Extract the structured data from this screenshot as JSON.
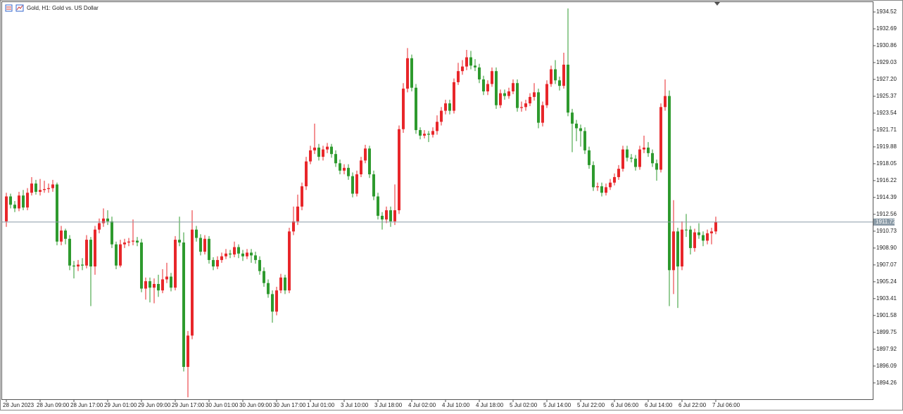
{
  "chart_data": {
    "type": "candlestick",
    "title": "Gold, H1:  Gold vs. US Dollar",
    "up_color": "#e8262a",
    "down_color": "#2e9a2e",
    "current_price": 1911.72,
    "ylim": [
      1892.49,
      1935.59
    ],
    "yticks": [
      1934.52,
      1932.69,
      1930.86,
      1929.03,
      {
        "value": 1927.2,
        "label": "1927.20"
      },
      1925.37,
      1923.54,
      1921.71,
      1919.88,
      1918.05,
      1916.22,
      1914.39,
      1912.56,
      1910.73,
      {
        "value": 1908.9,
        "label": "1908.90"
      },
      1907.07,
      1905.24,
      1903.41,
      1901.58,
      1899.75,
      1897.92,
      1896.09,
      1894.26
    ],
    "categories": [
      "28 Jun 2023",
      null,
      null,
      null,
      null,
      null,
      null,
      null,
      "28 Jun 09:00",
      null,
      null,
      null,
      null,
      null,
      null,
      null,
      "28 Jun 17:00",
      null,
      null,
      null,
      null,
      null,
      null,
      null,
      "29 Jun 01:00",
      null,
      null,
      null,
      null,
      null,
      null,
      null,
      "29 Jun 09:00",
      null,
      null,
      null,
      null,
      null,
      null,
      null,
      "29 Jun 17:00",
      null,
      null,
      null,
      null,
      null,
      null,
      null,
      "30 Jun 01:00",
      null,
      null,
      null,
      null,
      null,
      null,
      null,
      "30 Jun 09:00",
      null,
      null,
      null,
      null,
      null,
      null,
      null,
      "30 Jun 17:00",
      null,
      null,
      null,
      null,
      null,
      null,
      null,
      "1 Jul 01:00",
      null,
      null,
      null,
      null,
      null,
      null,
      null,
      "3 Jul 10:00",
      null,
      null,
      null,
      null,
      null,
      null,
      null,
      "3 Jul 18:00",
      null,
      null,
      null,
      null,
      null,
      null,
      null,
      "4 Jul 02:00",
      null,
      null,
      null,
      null,
      null,
      null,
      null,
      "4 Jul 10:00",
      null,
      null,
      null,
      null,
      null,
      null,
      null,
      "4 Jul 18:00",
      null,
      null,
      null,
      null,
      null,
      null,
      null,
      "5 Jul 02:00",
      null,
      null,
      null,
      null,
      null,
      null,
      null,
      "5 Jul 14:00",
      null,
      null,
      null,
      null,
      null,
      null,
      null,
      "5 Jul 22:00",
      null,
      null,
      null,
      null,
      null,
      null,
      null,
      "6 Jul 06:00",
      null,
      null,
      null,
      null,
      null,
      null,
      null,
      "6 Jul 14:00",
      null,
      null,
      null,
      null,
      null,
      null,
      null,
      "6 Jul 22:00",
      null,
      null,
      null,
      null,
      null,
      null,
      null,
      "7 Jul 06:00"
    ],
    "open": [
      1911.8,
      1914.5,
      1913.6,
      1913.2,
      1914.6,
      1913.3,
      1914.9,
      1915.9,
      1915.0,
      1915.2,
      1915.3,
      1915.4,
      1915.8,
      1909.6,
      1910.8,
      1909.9,
      1907.0,
      1906.9,
      1907.1,
      1907.0,
      1909.8,
      1906.9,
      1910.9,
      1911.6,
      1912.1,
      1911.8,
      1909.3,
      1907.0,
      1909.3,
      1909.5,
      1909.6,
      1909.7,
      1909.5,
      1904.5,
      1905.3,
      1904.6,
      1905.0,
      1904.3,
      1905.5,
      1905.8,
      1904.6,
      1909.8,
      1909.5,
      1896.0,
      1899.4,
      1910.9,
      1910.0,
      1908.5,
      1909.9,
      1907.6,
      1906.9,
      1907.6,
      1908.0,
      1908.3,
      1908.2,
      1909.0,
      1908.3,
      1908.0,
      1908.4,
      1908.1,
      1907.6,
      1906.4,
      1905.1,
      1903.9,
      1902.0,
      1904.3,
      1905.7,
      1904.3,
      1910.7,
      1911.8,
      1913.4,
      1915.6,
      1918.3,
      1919.5,
      1919.8,
      1918.8,
      1919.6,
      1919.9,
      1919.1,
      1918.1,
      1917.3,
      1917.6,
      1916.7,
      1914.8,
      1916.9,
      1918.4,
      1919.7,
      1916.9,
      1914.5,
      1912.4,
      1912.0,
      1913.0,
      1911.8,
      1913.0,
      1921.8,
      1926.2,
      1929.5,
      1926.3,
      1921.7,
      1921.1,
      1921.3,
      1921.2,
      1921.6,
      1922.6,
      1923.8,
      1924.6,
      1923.8,
      1926.9,
      1928.1,
      1928.6,
      1929.6,
      1928.7,
      1928.5,
      1927.2,
      1925.9,
      1926.7,
      1928.1,
      1924.4,
      1925.7,
      1925.4,
      1925.9,
      1926.8,
      1924.1,
      1924.2,
      1924.6,
      1925.3,
      1925.8,
      1922.5,
      1924.4,
      1926.7,
      1928.3,
      1927.1,
      1926.5,
      1928.8,
      1923.6,
      1922.4,
      1921.9,
      1921.6,
      1919.5,
      1917.9,
      1915.5,
      1915.6,
      1914.9,
      1915.5,
      1916.0,
      1916.6,
      1917.5,
      1919.6,
      1918.7,
      1918.6,
      1917.7,
      1919.6,
      1919.8,
      1919.2,
      1918.1,
      1917.4,
      1924.2,
      1925.4,
      1906.5,
      1910.7,
      1906.9,
      1910.9,
      1910.9,
      1908.9,
      1910.6,
      1910.3,
      1909.7,
      1910.5,
      1910.7
    ],
    "high": [
      1914.9,
      1914.8,
      1914.0,
      1915.0,
      1915.2,
      1915.4,
      1916.6,
      1916.3,
      1916.4,
      1916.2,
      1915.9,
      1916.3,
      1916.0,
      1911.3,
      1911.0,
      1910.3,
      1907.5,
      1907.6,
      1907.8,
      1910.3,
      1910.1,
      1911.3,
      1912.1,
      1913.2,
      1913.0,
      1912.3,
      1909.6,
      1909.8,
      1909.9,
      1910.0,
      1912.0,
      1910.1,
      1909.9,
      1905.7,
      1905.7,
      1905.6,
      1906.0,
      1906.6,
      1907.3,
      1906.2,
      1910.2,
      1912.3,
      1910.6,
      1899.9,
      1913.0,
      1911.3,
      1910.4,
      1910.3,
      1910.2,
      1907.9,
      1908.0,
      1908.4,
      1908.8,
      1908.7,
      1909.6,
      1909.3,
      1908.7,
      1908.8,
      1908.8,
      1908.5,
      1908.0,
      1906.8,
      1905.5,
      1904.3,
      1904.7,
      1906.1,
      1906.0,
      1911.1,
      1913.4,
      1914.7,
      1916.0,
      1918.8,
      1920.0,
      1922.4,
      1920.2,
      1920.0,
      1920.3,
      1920.2,
      1919.5,
      1918.5,
      1918.0,
      1918.0,
      1917.1,
      1917.3,
      1918.8,
      1920.1,
      1920.0,
      1917.3,
      1914.9,
      1912.8,
      1913.4,
      1913.4,
      1915.8,
      1922.2,
      1926.8,
      1930.6,
      1929.9,
      1926.7,
      1922.0,
      1921.7,
      1921.6,
      1922.0,
      1923.3,
      1924.2,
      1925.0,
      1925.0,
      1927.3,
      1929.0,
      1929.3,
      1930.4,
      1930.3,
      1929.4,
      1928.9,
      1927.6,
      1927.1,
      1928.5,
      1928.5,
      1926.1,
      1926.1,
      1926.3,
      1927.2,
      1927.2,
      1924.8,
      1925.0,
      1925.7,
      1926.8,
      1926.2,
      1924.8,
      1927.1,
      1928.7,
      1929.3,
      1927.5,
      1930.1,
      1934.9,
      1924.0,
      1922.8,
      1922.3,
      1922.0,
      1919.9,
      1918.3,
      1916.0,
      1916.0,
      1915.9,
      1916.4,
      1917.0,
      1917.9,
      1920.0,
      1920.0,
      1919.1,
      1919.0,
      1920.0,
      1921.1,
      1920.4,
      1919.6,
      1918.5,
      1924.6,
      1927.2,
      1926.0,
      1914.1,
      1911.1,
      1911.8,
      1912.6,
      1911.3,
      1911.0,
      1911.6,
      1910.7,
      1910.9,
      1911.1,
      1912.3
    ],
    "low": [
      1911.2,
      1913.2,
      1912.8,
      1912.9,
      1913.0,
      1913.0,
      1914.6,
      1914.7,
      1914.6,
      1914.9,
      1914.9,
      1915.0,
      1909.2,
      1909.2,
      1909.3,
      1906.5,
      1905.6,
      1906.4,
      1906.5,
      1906.7,
      1902.6,
      1906.0,
      1910.5,
      1911.2,
      1911.4,
      1908.9,
      1906.6,
      1906.8,
      1908.9,
      1909.1,
      1909.2,
      1909.1,
      1904.1,
      1903.3,
      1903.0,
      1902.9,
      1903.6,
      1904.0,
      1905.1,
      1904.2,
      1904.3,
      1909.1,
      1895.5,
      1892.7,
      1899.0,
      1909.6,
      1908.1,
      1908.2,
      1907.2,
      1906.5,
      1906.6,
      1907.3,
      1907.7,
      1907.8,
      1907.9,
      1907.8,
      1907.5,
      1907.7,
      1907.3,
      1907.2,
      1906.0,
      1904.7,
      1903.5,
      1900.8,
      1901.6,
      1904.0,
      1903.9,
      1904.0,
      1910.3,
      1911.4,
      1913.0,
      1915.2,
      1918.0,
      1919.1,
      1918.4,
      1918.4,
      1919.2,
      1918.7,
      1917.7,
      1916.9,
      1916.9,
      1916.3,
      1914.4,
      1914.5,
      1916.6,
      1918.1,
      1916.5,
      1914.1,
      1912.0,
      1910.9,
      1911.6,
      1911.2,
      1911.4,
      1912.6,
      1921.4,
      1925.8,
      1925.9,
      1921.3,
      1920.7,
      1920.8,
      1920.4,
      1920.9,
      1921.2,
      1922.2,
      1923.4,
      1923.4,
      1923.5,
      1926.6,
      1927.7,
      1928.2,
      1928.3,
      1928.1,
      1926.8,
      1925.5,
      1925.5,
      1926.4,
      1924.0,
      1924.1,
      1925.0,
      1925.1,
      1925.6,
      1923.7,
      1923.7,
      1923.8,
      1924.3,
      1924.9,
      1921.9,
      1922.1,
      1924.1,
      1926.4,
      1926.7,
      1926.0,
      1926.2,
      1923.2,
      1919.3,
      1920.5,
      1919.9,
      1919.1,
      1917.5,
      1915.1,
      1915.1,
      1914.5,
      1914.6,
      1915.2,
      1915.7,
      1916.3,
      1917.2,
      1918.3,
      1918.2,
      1917.3,
      1917.4,
      1919.2,
      1918.8,
      1917.7,
      1916.2,
      1917.1,
      1923.8,
      1902.6,
      1903.9,
      1902.4,
      1906.5,
      1910.1,
      1908.2,
      1908.5,
      1909.9,
      1909.1,
      1909.3,
      1909.3,
      1910.4
    ],
    "close": [
      1914.5,
      1913.6,
      1913.2,
      1914.6,
      1913.3,
      1914.9,
      1915.9,
      1915.0,
      1915.2,
      1915.3,
      1915.4,
      1915.8,
      1909.6,
      1910.8,
      1909.9,
      1907.0,
      1906.9,
      1907.1,
      1907.0,
      1909.8,
      1906.9,
      1910.9,
      1911.6,
      1912.1,
      1911.8,
      1909.3,
      1907.0,
      1909.3,
      1909.5,
      1909.6,
      1909.7,
      1909.5,
      1904.5,
      1905.3,
      1904.6,
      1905.0,
      1904.3,
      1905.5,
      1905.8,
      1904.6,
      1909.8,
      1909.5,
      1896.0,
      1899.4,
      1910.9,
      1910.0,
      1908.5,
      1909.9,
      1907.6,
      1906.9,
      1907.6,
      1908.0,
      1908.3,
      1908.2,
      1909.0,
      1908.3,
      1908.0,
      1908.4,
      1908.1,
      1907.6,
      1906.4,
      1905.1,
      1903.9,
      1902.0,
      1904.3,
      1905.7,
      1904.3,
      1910.7,
      1911.8,
      1913.4,
      1915.6,
      1918.3,
      1919.5,
      1919.8,
      1918.8,
      1919.6,
      1919.9,
      1919.1,
      1918.1,
      1917.3,
      1917.6,
      1916.7,
      1914.8,
      1916.9,
      1918.4,
      1919.7,
      1916.9,
      1914.5,
      1912.4,
      1912.0,
      1913.0,
      1911.8,
      1913.0,
      1921.8,
      1926.2,
      1929.5,
      1926.3,
      1921.7,
      1921.1,
      1921.3,
      1921.2,
      1921.6,
      1922.6,
      1923.8,
      1924.6,
      1923.8,
      1926.9,
      1928.1,
      1928.6,
      1929.6,
      1928.7,
      1928.5,
      1927.2,
      1925.9,
      1926.7,
      1928.1,
      1924.4,
      1925.7,
      1925.4,
      1925.9,
      1926.8,
      1924.1,
      1924.2,
      1924.6,
      1925.3,
      1925.8,
      1922.5,
      1924.4,
      1926.7,
      1928.3,
      1927.1,
      1926.5,
      1928.8,
      1923.6,
      1922.4,
      1921.9,
      1921.6,
      1919.5,
      1917.9,
      1915.5,
      1915.6,
      1914.9,
      1915.5,
      1916.0,
      1916.6,
      1917.5,
      1919.6,
      1918.7,
      1918.6,
      1917.7,
      1919.6,
      1919.8,
      1919.2,
      1918.1,
      1917.4,
      1924.2,
      1925.4,
      1906.5,
      1910.7,
      1906.9,
      1910.9,
      1910.9,
      1908.9,
      1910.6,
      1910.3,
      1909.7,
      1910.5,
      1910.7,
      1911.7
    ]
  }
}
